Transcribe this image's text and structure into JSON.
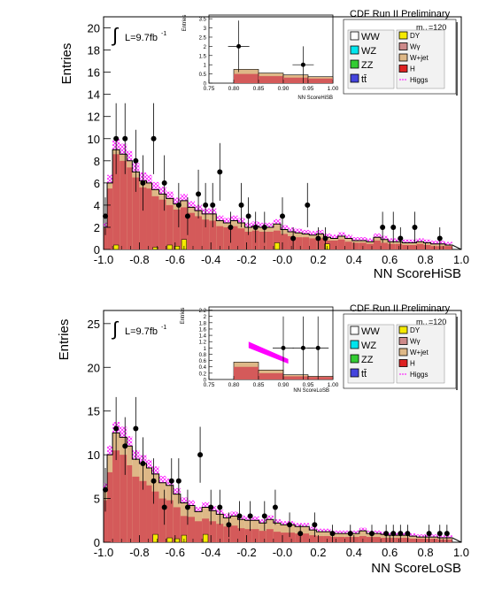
{
  "colors": {
    "ww": "#ffffff",
    "wz": "#00e5ee",
    "zz": "#33cc33",
    "tt": "#4444dd",
    "dy": "#f5ea00",
    "wg": "#cd8a8a",
    "wjet": "#deb887",
    "h": "#dd2222",
    "higgs": "#ff00ff",
    "data": "#000000",
    "total": "#d45a5a"
  },
  "chart_data": [
    {
      "type": "bar",
      "xlabel": "NN ScoreHiSB",
      "ylabel": "Entries",
      "xlim": [
        -1.0,
        1.0
      ],
      "ylim": [
        0,
        21
      ],
      "xticks": [
        "-1.0",
        "-0.8",
        "-0.6",
        "-0.4",
        "-0.2",
        "-0.0",
        "0.2",
        "0.4",
        "0.6",
        "0.8",
        "1.0"
      ],
      "yticks": [
        "0",
        "2",
        "4",
        "6",
        "8",
        "10",
        "12",
        "14",
        "16",
        "18",
        "20"
      ],
      "ytick_values": [
        0,
        2,
        4,
        6,
        8,
        10,
        12,
        14,
        16,
        18,
        20
      ],
      "experiment_label": "CDF Run II Preliminary",
      "lumi_label": "L=9.7fb",
      "lumi_exponent": "-1",
      "mass_label": "m",
      "mass_sub": "H",
      "mass_value": "=120",
      "integral_symbol": "∫",
      "legend": [
        {
          "key": "ww",
          "label": "WW"
        },
        {
          "key": "dy",
          "label": "DY"
        },
        {
          "key": "wz",
          "label": "WZ"
        },
        {
          "key": "wg",
          "label": "Wγ"
        },
        {
          "key": "zz",
          "label": "ZZ"
        },
        {
          "key": "wjet",
          "label": "W+jet"
        },
        {
          "key": "tt",
          "label": "tt̄"
        },
        {
          "key": "h",
          "label": "H"
        },
        {
          "key": "higgs",
          "label": "Higgs"
        }
      ],
      "bin_edges": [
        -1.0,
        -0.98,
        -0.95,
        -0.91,
        -0.87,
        -0.84,
        -0.8,
        -0.76,
        -0.73,
        -0.69,
        -0.65,
        -0.61,
        -0.57,
        -0.53,
        -0.49,
        -0.45,
        -0.41,
        -0.37,
        -0.33,
        -0.29,
        -0.25,
        -0.21,
        -0.17,
        -0.13,
        -0.09,
        -0.05,
        -0.01,
        0.03,
        0.07,
        0.11,
        0.15,
        0.19,
        0.23,
        0.27,
        0.31,
        0.35,
        0.39,
        0.43,
        0.47,
        0.51,
        0.55,
        0.59,
        0.63,
        0.67,
        0.71,
        0.75,
        0.79,
        0.83,
        0.87,
        0.91,
        0.95,
        1.0
      ],
      "background_total": [
        2.0,
        6.0,
        9.0,
        8.6,
        8.0,
        7.0,
        6.2,
        6.0,
        5.4,
        5.0,
        4.6,
        4.1,
        4.4,
        3.8,
        3.5,
        3.2,
        3.2,
        2.6,
        2.4,
        2.6,
        2.4,
        2.0,
        2.1,
        2.0,
        2.0,
        2.3,
        1.8,
        1.6,
        1.5,
        1.4,
        1.3,
        1.4,
        1.1,
        1.0,
        1.2,
        1.0,
        0.8,
        0.8,
        0.7,
        1.1,
        0.9,
        0.7,
        0.7,
        0.6,
        0.6,
        0.7,
        0.6,
        0.5,
        0.5,
        0.4
      ],
      "red_component": [
        1.9,
        5.5,
        8.6,
        8.0,
        7.4,
        6.5,
        5.6,
        5.5,
        4.8,
        4.5,
        4.0,
        3.6,
        3.8,
        3.3,
        3.0,
        2.7,
        2.6,
        2.1,
        2.0,
        2.1,
        1.9,
        1.6,
        1.7,
        1.6,
        1.6,
        1.7,
        1.4,
        1.2,
        1.1,
        1.1,
        1.0,
        1.0,
        0.8,
        0.8,
        0.9,
        0.7,
        0.6,
        0.6,
        0.5,
        0.8,
        0.6,
        0.5,
        0.5,
        0.4,
        0.4,
        0.5,
        0.4,
        0.3,
        0.3,
        0.3
      ],
      "dy_component": [
        0,
        0,
        0.4,
        0,
        0,
        0,
        0,
        0,
        0.2,
        0,
        0.4,
        0.3,
        0.9,
        0,
        0,
        0,
        0,
        0,
        0,
        0,
        0,
        0,
        0,
        0,
        0,
        0.6,
        0,
        0,
        0,
        0,
        0,
        0,
        0.5,
        0,
        0,
        0,
        0,
        0,
        0,
        0,
        0,
        0,
        0,
        0,
        0,
        0,
        0,
        0,
        0,
        0
      ],
      "data_points": [
        {
          "x": -0.99,
          "y": 3,
          "err": 1.7
        },
        {
          "x": -0.93,
          "y": 10,
          "err": 3.2
        },
        {
          "x": -0.88,
          "y": 10,
          "err": 3.2
        },
        {
          "x": -0.82,
          "y": 8,
          "err": 2.8
        },
        {
          "x": -0.78,
          "y": 6,
          "err": 2.5
        },
        {
          "x": -0.72,
          "y": 10,
          "err": 3.2
        },
        {
          "x": -0.66,
          "y": 6,
          "err": 2.5
        },
        {
          "x": -0.58,
          "y": 4,
          "err": 2.0
        },
        {
          "x": -0.53,
          "y": 3,
          "err": 1.7
        },
        {
          "x": -0.47,
          "y": 5,
          "err": 2.2
        },
        {
          "x": -0.43,
          "y": 4,
          "err": 2.0
        },
        {
          "x": -0.39,
          "y": 4,
          "err": 2.0
        },
        {
          "x": -0.35,
          "y": 7,
          "err": 2.6
        },
        {
          "x": -0.29,
          "y": 2,
          "err": 1.4
        },
        {
          "x": -0.23,
          "y": 4,
          "err": 2.0
        },
        {
          "x": -0.19,
          "y": 3,
          "err": 1.7
        },
        {
          "x": -0.15,
          "y": 2,
          "err": 1.4
        },
        {
          "x": -0.1,
          "y": 2,
          "err": 1.4
        },
        {
          "x": 0.0,
          "y": 3,
          "err": 1.7
        },
        {
          "x": 0.06,
          "y": 1,
          "err": 1.0
        },
        {
          "x": 0.14,
          "y": 4,
          "err": 2.0
        },
        {
          "x": 0.2,
          "y": 1,
          "err": 1.0
        },
        {
          "x": 0.24,
          "y": 1,
          "err": 1.0
        },
        {
          "x": 0.56,
          "y": 2,
          "err": 1.4
        },
        {
          "x": 0.62,
          "y": 2,
          "err": 1.4
        },
        {
          "x": 0.66,
          "y": 1,
          "err": 1.0
        },
        {
          "x": 0.74,
          "y": 2,
          "err": 1.4
        },
        {
          "x": 0.88,
          "y": 1,
          "err": 1.0
        }
      ],
      "inset": {
        "xlabel": "NN ScoreHiSB",
        "ylabel": "Entries",
        "xlim": [
          0.75,
          1.0
        ],
        "ylim": [
          0,
          3.7
        ],
        "xticks": [
          "0.75",
          "0.80",
          "0.85",
          "0.90",
          "0.95",
          "1.00"
        ],
        "xtick_values": [
          0.75,
          0.8,
          0.85,
          0.9,
          0.95,
          1.0
        ],
        "yticks": [
          "0",
          "0.5",
          "1",
          "1.5",
          "2",
          "2.5",
          "3",
          "3.5"
        ],
        "ytick_values": [
          0,
          0.5,
          1,
          1.5,
          2,
          2.5,
          3,
          3.5
        ],
        "bin_edges": [
          0.75,
          0.8,
          0.85,
          0.9,
          0.95,
          1.0
        ],
        "background_total": [
          0.0,
          0.75,
          0.55,
          0.45,
          0.35
        ],
        "red_component": [
          0.0,
          0.5,
          0.38,
          0.3,
          0.25
        ],
        "data_points": [
          {
            "x": 0.81,
            "y": 2,
            "err": 1.4
          },
          {
            "x": 0.94,
            "y": 1,
            "err": 1.0
          }
        ],
        "higgs_band": []
      }
    },
    {
      "type": "bar",
      "xlabel": "NN ScoreLoSB",
      "ylabel": "Entries",
      "xlim": [
        -1.0,
        1.0
      ],
      "ylim": [
        0,
        26.5
      ],
      "xticks": [
        "-1.0",
        "-0.8",
        "-0.6",
        "-0.4",
        "-0.2",
        "-0.0",
        "0.2",
        "0.4",
        "0.6",
        "0.8",
        "1.0"
      ],
      "yticks": [
        "0",
        "5",
        "10",
        "15",
        "20",
        "25"
      ],
      "ytick_values": [
        0,
        5,
        10,
        15,
        20,
        25
      ],
      "experiment_label": "CDF Run II Preliminary",
      "lumi_label": "L=9.7fb",
      "lumi_exponent": "-1",
      "mass_label": "m",
      "mass_sub": "H",
      "mass_value": "=120",
      "integral_symbol": "∫",
      "legend": [
        {
          "key": "ww",
          "label": "WW"
        },
        {
          "key": "dy",
          "label": "DY"
        },
        {
          "key": "wz",
          "label": "WZ"
        },
        {
          "key": "wg",
          "label": "Wγ"
        },
        {
          "key": "zz",
          "label": "ZZ"
        },
        {
          "key": "wjet",
          "label": "W+jet"
        },
        {
          "key": "tt",
          "label": "tt̄"
        },
        {
          "key": "h",
          "label": "H"
        },
        {
          "key": "higgs",
          "label": "Higgs"
        }
      ],
      "bin_edges": [
        -1.0,
        -0.98,
        -0.95,
        -0.91,
        -0.87,
        -0.84,
        -0.8,
        -0.76,
        -0.73,
        -0.69,
        -0.65,
        -0.61,
        -0.57,
        -0.53,
        -0.49,
        -0.45,
        -0.41,
        -0.37,
        -0.33,
        -0.29,
        -0.25,
        -0.21,
        -0.17,
        -0.13,
        -0.09,
        -0.05,
        -0.01,
        0.03,
        0.07,
        0.11,
        0.15,
        0.19,
        0.23,
        0.27,
        0.31,
        0.35,
        0.39,
        0.43,
        0.47,
        0.51,
        0.55,
        0.59,
        0.63,
        0.67,
        0.71,
        0.75,
        0.79,
        0.83,
        0.87,
        0.91,
        0.95,
        1.0
      ],
      "background_total": [
        6.0,
        10.0,
        12.5,
        12.0,
        11.0,
        9.5,
        9.0,
        8.5,
        7.8,
        6.8,
        6.5,
        5.5,
        4.5,
        4.2,
        3.5,
        4.0,
        3.6,
        3.2,
        2.8,
        3.0,
        2.6,
        2.5,
        2.5,
        2.2,
        2.6,
        2.2,
        2.0,
        2.0,
        1.8,
        1.8,
        1.4,
        1.2,
        1.2,
        1.0,
        1.0,
        1.0,
        1.0,
        1.3,
        1.0,
        1.0,
        0.9,
        0.8,
        0.8,
        0.8,
        0.7,
        0.6,
        0.6,
        0.6,
        0.5,
        0.5
      ],
      "red_component": [
        4.8,
        8.0,
        10.5,
        10.0,
        8.8,
        7.5,
        7.0,
        6.5,
        5.8,
        5.0,
        4.8,
        4.0,
        3.0,
        2.9,
        2.4,
        2.7,
        2.4,
        2.1,
        1.8,
        1.9,
        1.6,
        1.5,
        1.5,
        1.3,
        1.5,
        1.2,
        1.1,
        1.1,
        1.0,
        1.0,
        0.8,
        0.7,
        0.7,
        0.6,
        0.6,
        0.6,
        0.6,
        0.7,
        0.6,
        0.6,
        0.5,
        0.5,
        0.5,
        0.5,
        0.4,
        0.4,
        0.4,
        0.4,
        0.3,
        0.3
      ],
      "dy_component": [
        0,
        0,
        0,
        0,
        0,
        0,
        0,
        0,
        0.9,
        0,
        0.5,
        0.4,
        0.8,
        0,
        0,
        0.9,
        0,
        0,
        0,
        0,
        0,
        0,
        0,
        0,
        0,
        0,
        0,
        0,
        0,
        0,
        0,
        0,
        0,
        0,
        0,
        0,
        0,
        0,
        0,
        0,
        0,
        0,
        0,
        0,
        0,
        0,
        0,
        0,
        0,
        0
      ],
      "data_points": [
        {
          "x": -0.99,
          "y": 6,
          "err": 2.5
        },
        {
          "x": -0.93,
          "y": 13,
          "err": 3.6
        },
        {
          "x": -0.88,
          "y": 11,
          "err": 3.3
        },
        {
          "x": -0.82,
          "y": 13,
          "err": 3.6
        },
        {
          "x": -0.78,
          "y": 9,
          "err": 3.0
        },
        {
          "x": -0.72,
          "y": 7,
          "err": 2.6
        },
        {
          "x": -0.66,
          "y": 4,
          "err": 2.0
        },
        {
          "x": -0.62,
          "y": 7,
          "err": 2.6
        },
        {
          "x": -0.58,
          "y": 7,
          "err": 2.6
        },
        {
          "x": -0.53,
          "y": 4,
          "err": 2.0
        },
        {
          "x": -0.46,
          "y": 10,
          "err": 3.2
        },
        {
          "x": -0.4,
          "y": 4,
          "err": 2.0
        },
        {
          "x": -0.35,
          "y": 4,
          "err": 2.0
        },
        {
          "x": -0.3,
          "y": 2,
          "err": 1.4
        },
        {
          "x": -0.24,
          "y": 3,
          "err": 1.7
        },
        {
          "x": -0.18,
          "y": 3,
          "err": 1.7
        },
        {
          "x": -0.1,
          "y": 3,
          "err": 1.7
        },
        {
          "x": -0.04,
          "y": 4,
          "err": 2.0
        },
        {
          "x": 0.04,
          "y": 2,
          "err": 1.4
        },
        {
          "x": 0.1,
          "y": 1,
          "err": 1.0
        },
        {
          "x": 0.18,
          "y": 2,
          "err": 1.4
        },
        {
          "x": 0.28,
          "y": 1,
          "err": 1.0
        },
        {
          "x": 0.38,
          "y": 1,
          "err": 1.0
        },
        {
          "x": 0.5,
          "y": 1,
          "err": 1.0
        },
        {
          "x": 0.58,
          "y": 1,
          "err": 1.0
        },
        {
          "x": 0.62,
          "y": 1,
          "err": 1.0
        },
        {
          "x": 0.66,
          "y": 1,
          "err": 1.0
        },
        {
          "x": 0.7,
          "y": 1,
          "err": 1.0
        },
        {
          "x": 0.82,
          "y": 1,
          "err": 1.0
        },
        {
          "x": 0.88,
          "y": 1,
          "err": 1.0
        },
        {
          "x": 0.92,
          "y": 1,
          "err": 1.0
        }
      ],
      "inset": {
        "xlabel": "NN ScoreLoSB",
        "ylabel": "Entries",
        "xlim": [
          0.75,
          1.0
        ],
        "ylim": [
          0,
          2.3
        ],
        "xticks": [
          "0.75",
          "0.80",
          "0.85",
          "0.90",
          "0.95",
          "1.00"
        ],
        "xtick_values": [
          0.75,
          0.8,
          0.85,
          0.9,
          0.95,
          1.0
        ],
        "yticks": [
          "0",
          "0.2",
          "0.4",
          "0.6",
          "0.8",
          "1",
          "1.2",
          "1.4",
          "1.6",
          "1.8",
          "2",
          "2.2"
        ],
        "ytick_values": [
          0,
          0.2,
          0.4,
          0.6,
          0.8,
          1.0,
          1.2,
          1.4,
          1.6,
          1.8,
          2.0,
          2.2
        ],
        "bin_edges": [
          0.75,
          0.8,
          0.85,
          0.9,
          0.95,
          1.0
        ],
        "background_total": [
          0.0,
          0.55,
          0.3,
          0.15,
          0.1
        ],
        "red_component": [
          0.0,
          0.4,
          0.2,
          0.1,
          0.08
        ],
        "data_points": [
          {
            "x": 0.9,
            "y": 1,
            "err": 1.0
          },
          {
            "x": 0.94,
            "y": 1,
            "err": 1.0
          },
          {
            "x": 0.97,
            "y": 1,
            "err": 1.0
          }
        ],
        "higgs_band": [
          {
            "x": 0.83,
            "top": 1.2,
            "bottom": 1.0
          },
          {
            "x": 0.91,
            "top": 0.65,
            "bottom": 0.5
          }
        ]
      }
    }
  ]
}
